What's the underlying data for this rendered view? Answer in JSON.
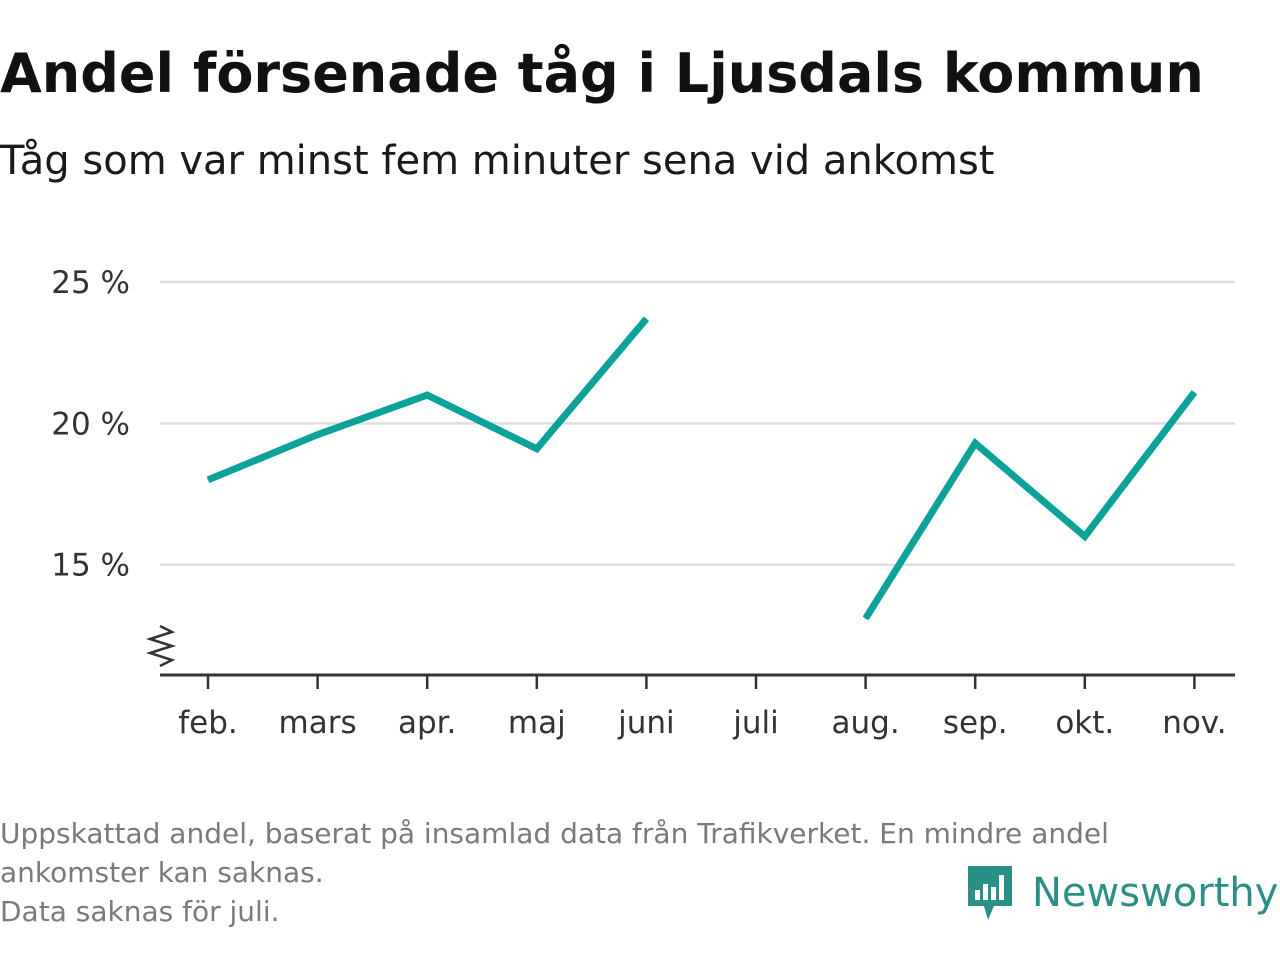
{
  "header": {
    "title": "Andel försenade tåg i Ljusdals kommun",
    "subtitle": "Tåg som var minst fem minuter sena vid ankomst"
  },
  "chart_data": {
    "type": "line",
    "title": "Andel försenade tåg i Ljusdals kommun",
    "subtitle": "Tåg som var minst fem minuter sena vid ankomst",
    "categories": [
      "feb.",
      "mars",
      "apr.",
      "maj",
      "juni",
      "juli",
      "aug.",
      "sep.",
      "okt.",
      "nov."
    ],
    "series": [
      {
        "values": [
          18.0,
          19.6,
          21.0,
          19.1,
          23.7,
          null,
          13.1,
          19.3,
          16.0,
          21.1
        ],
        "color": "#0ba29a"
      }
    ],
    "y_ticks": [
      15,
      20,
      25
    ],
    "y_tick_labels": [
      "15 %",
      "20 %",
      "25 %"
    ],
    "ylim": [
      11.1,
      25
    ],
    "axis_break": true,
    "grid": true,
    "legend": "none",
    "xlabel": "",
    "ylabel": ""
  },
  "footer": {
    "note_line1": "Uppskattad andel, baserat på insamlad data från Trafikverket. En mindre andel",
    "note_line2": "ankomster kan saknas.",
    "note_line3": "Data saknas för juli.",
    "brand": "Newsworthy",
    "brand_icon": "newsworthy-logo-icon",
    "brand_color": "#2a8f86"
  }
}
